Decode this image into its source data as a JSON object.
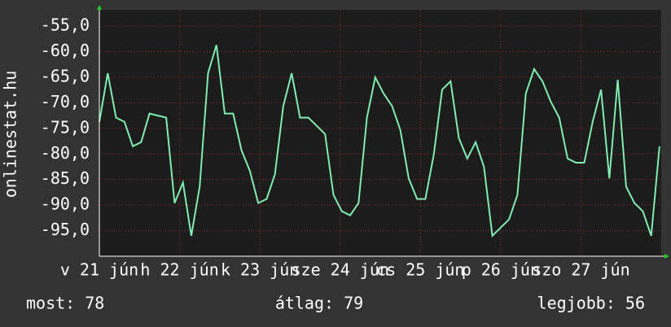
{
  "chart_data": {
    "type": "line",
    "ylabel": "onlinestat.hu",
    "x": [
      0,
      2.5,
      5,
      7.5,
      10,
      12.5,
      15,
      17.5,
      20,
      22.5,
      25,
      27.5,
      30,
      32.5,
      35,
      37.5,
      40,
      42.5,
      45,
      47.5,
      50,
      52.5,
      55,
      57.5,
      60,
      62.5,
      65,
      67.5,
      70,
      72.5,
      75,
      77.5,
      80,
      82.5,
      85,
      87.5,
      90,
      92.5,
      95,
      97.5,
      100,
      102.5,
      105,
      107.5,
      110,
      112.5,
      115,
      117.5,
      120,
      122.5,
      125,
      127.5,
      130,
      132.5,
      135,
      137.5,
      140,
      142.5,
      145,
      147.5,
      150,
      152.5,
      155,
      157.5,
      160,
      162.5,
      165,
      167.5
    ],
    "series": [
      {
        "name": "onlinestat.hu",
        "color": "#7fecb2",
        "values": [
          -73.7,
          -64.2,
          -72.9,
          -73.7,
          -78.5,
          -77.7,
          -72.1,
          -72.5,
          -72.9,
          -89.6,
          -85.6,
          -96,
          -86.4,
          -64.2,
          -58.7,
          -72.1,
          -72.1,
          -79.3,
          -83.3,
          -89.6,
          -88.8,
          -84,
          -70.6,
          -64.2,
          -72.9,
          -72.9,
          -74.5,
          -76.1,
          -88,
          -91.2,
          -92,
          -89.6,
          -72.9,
          -65,
          -68.2,
          -70.6,
          -75.3,
          -84.8,
          -88.8,
          -88.8,
          -80.1,
          -67.4,
          -65.8,
          -76.9,
          -80.9,
          -77.7,
          -82.5,
          -96,
          -94.4,
          -92.8,
          -88,
          -68.2,
          -63.4,
          -65.8,
          -69.8,
          -72.9,
          -80.9,
          -81.7,
          -81.7,
          -73.7,
          -67.4,
          -84.8,
          -65.5,
          -86.4,
          -89.6,
          -91.2,
          -96,
          -78.5
        ]
      }
    ],
    "xlim": [
      0,
      168
    ],
    "xticks": [
      {
        "value": 0,
        "label": "v 21 jún"
      },
      {
        "value": 24,
        "label": "h 22 jún"
      },
      {
        "value": 48,
        "label": "k 23 jún"
      },
      {
        "value": 72,
        "label": "sze 24 jún"
      },
      {
        "value": 96,
        "label": "cs 25 jún"
      },
      {
        "value": 120,
        "label": "p 26 jún"
      },
      {
        "value": 144,
        "label": "szo 27 jún"
      }
    ],
    "ylim": [
      -100,
      -51.8
    ],
    "yticks": [
      {
        "value": -95,
        "label": "-95,0"
      },
      {
        "value": -90,
        "label": "-90,0"
      },
      {
        "value": -85,
        "label": "-85,0"
      },
      {
        "value": -80,
        "label": "-80,0"
      },
      {
        "value": -75,
        "label": "-75,0"
      },
      {
        "value": -70,
        "label": "-70,0"
      },
      {
        "value": -65,
        "label": "-65,0"
      },
      {
        "value": -60,
        "label": "-60,0"
      },
      {
        "value": -55,
        "label": "-55,0"
      }
    ],
    "grid": true,
    "footer": [
      "most: 78",
      "átlag: 79",
      "legjobb: 56"
    ]
  }
}
